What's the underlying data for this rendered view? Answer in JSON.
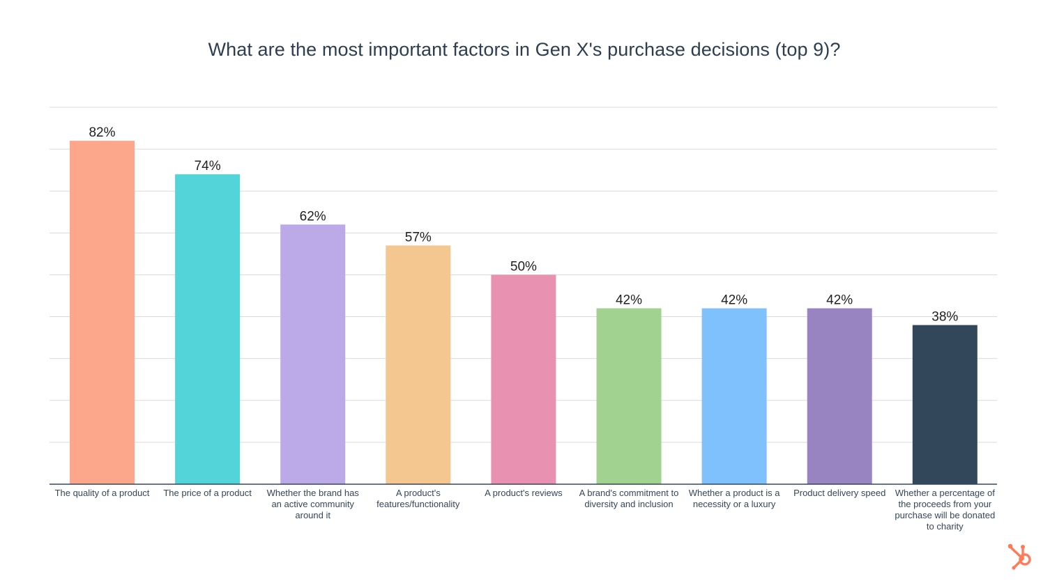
{
  "chart_data": {
    "type": "bar",
    "title": "What are the most important factors in Gen X's purchase decisions (top 9)?",
    "categories": [
      "The quality of a product",
      "The price of a product",
      "Whether the brand has an active community around it",
      "A product's features/functionality",
      "A product's reviews",
      "A brand's commitment to diversity and inclusion",
      "Whether a product is a necessity or a luxury",
      "Product delivery speed",
      "Whether a percentage of the proceeds from your purchase will be donated to charity"
    ],
    "values": [
      82,
      74,
      62,
      57,
      50,
      42,
      42,
      42,
      38
    ],
    "value_labels": [
      "82%",
      "74%",
      "62%",
      "57%",
      "50%",
      "42%",
      "42%",
      "42%",
      "38%"
    ],
    "bar_colors": [
      "#fca78c",
      "#52d4d9",
      "#bca9e8",
      "#f4c790",
      "#e991b0",
      "#a2d28f",
      "#7fc1fd",
      "#9984c2",
      "#33475b"
    ],
    "ylim": [
      0,
      90
    ],
    "grid": true,
    "y_tick_labels_shown": false,
    "legend": "none"
  },
  "logo": {
    "icon": "hubspot-sprocket-icon",
    "color": "#ff7a59"
  }
}
